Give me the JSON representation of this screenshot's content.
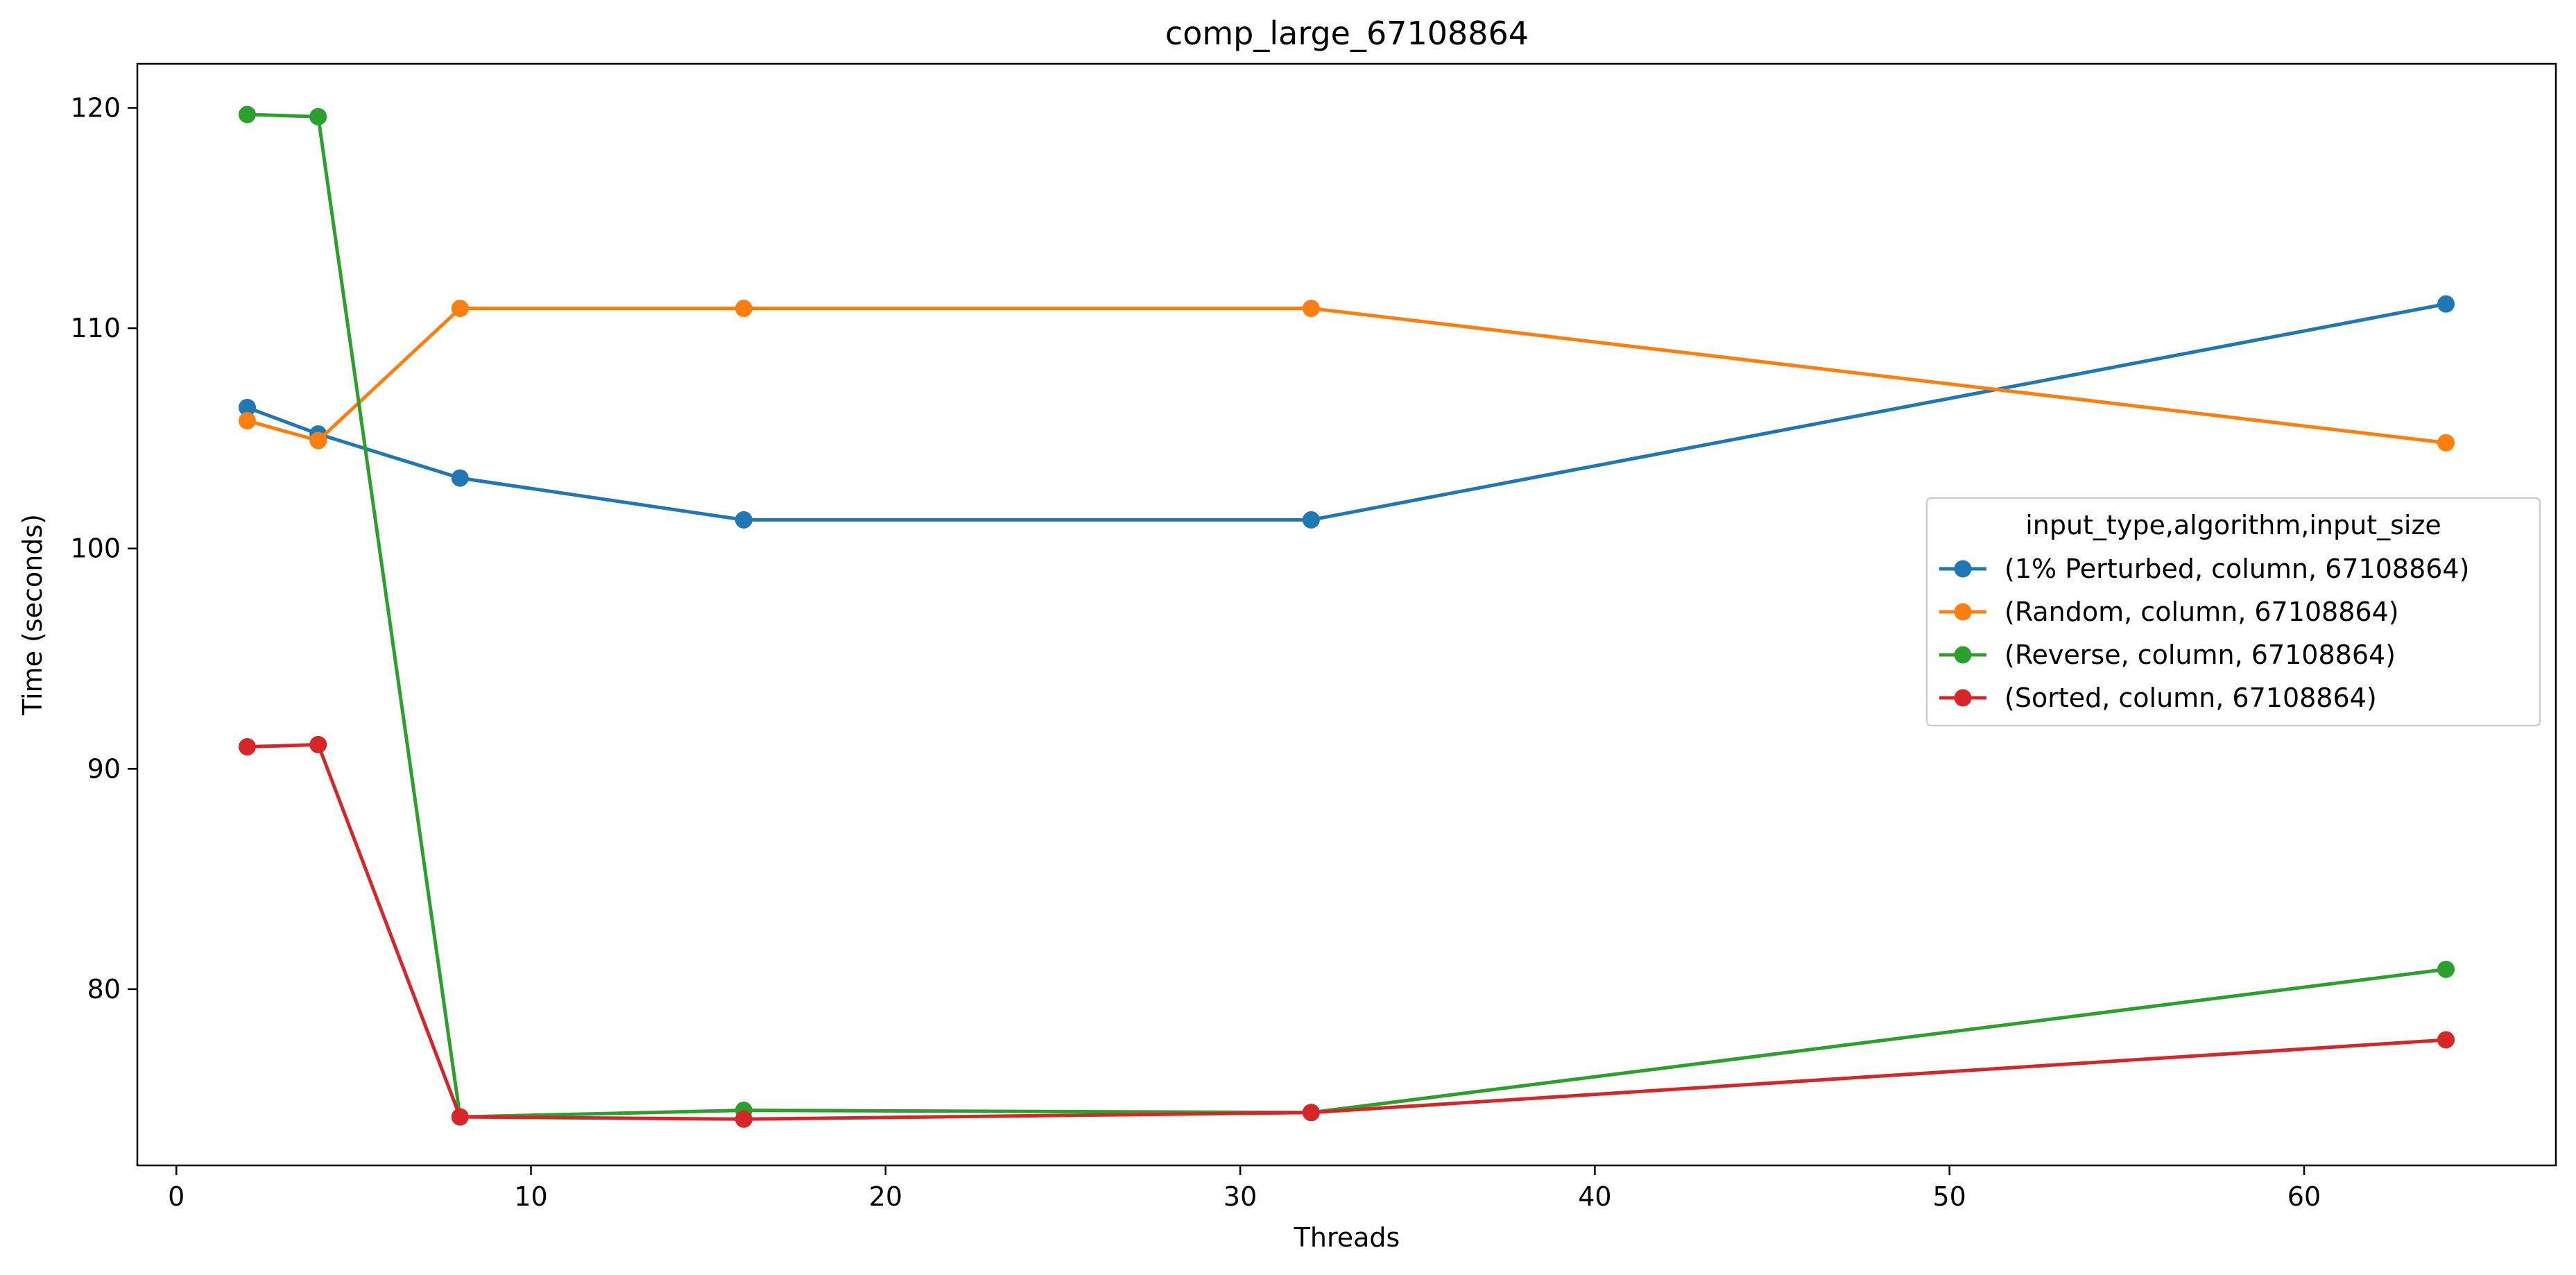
{
  "chart_data": {
    "type": "line",
    "title": "comp_large_67108864",
    "xlabel": "Threads",
    "ylabel": "Time (seconds)",
    "xlim": [
      -1.1,
      67.1
    ],
    "ylim": [
      72.0,
      122.0
    ],
    "xticks": [
      0,
      10,
      20,
      30,
      40,
      50,
      60
    ],
    "yticks": [
      80,
      90,
      100,
      110,
      120
    ],
    "grid": false,
    "legend": {
      "title": "input_type,algorithm,input_size",
      "placement": "center-right"
    },
    "x": [
      2,
      4,
      8,
      16,
      32,
      64
    ],
    "series": [
      {
        "name": "(1% Perturbed, column, 67108864)",
        "color": "#1f77b4",
        "values": [
          106.4,
          105.2,
          103.2,
          101.3,
          101.3,
          111.1
        ]
      },
      {
        "name": "(Random, column, 67108864)",
        "color": "#ff7f0e",
        "values": [
          105.8,
          104.9,
          110.9,
          110.9,
          110.9,
          104.8
        ]
      },
      {
        "name": "(Reverse, column, 67108864)",
        "color": "#2ca02c",
        "values": [
          119.7,
          119.6,
          74.2,
          74.5,
          74.4,
          80.9
        ]
      },
      {
        "name": "(Sorted, column, 67108864)",
        "color": "#d62728",
        "values": [
          91.0,
          91.1,
          74.2,
          74.1,
          74.4,
          77.7
        ]
      }
    ]
  }
}
